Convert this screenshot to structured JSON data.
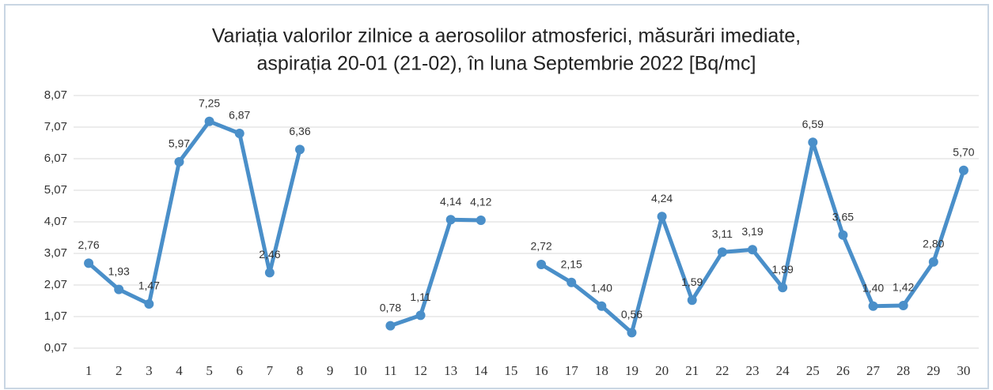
{
  "chart_data": {
    "type": "line",
    "title": [
      "Variația valorilor zilnice a aerosolilor atmosferici, măsurări imediate,",
      "aspirația 20-01 (21-02),  în luna Septembrie 2022 [Bq/mc]"
    ],
    "categories": [
      "1",
      "2",
      "3",
      "4",
      "5",
      "6",
      "7",
      "8",
      "9",
      "10",
      "11",
      "12",
      "13",
      "14",
      "15",
      "16",
      "17",
      "18",
      "19",
      "20",
      "21",
      "22",
      "23",
      "24",
      "25",
      "26",
      "27",
      "28",
      "29",
      "30"
    ],
    "values": [
      2.76,
      1.93,
      1.47,
      5.97,
      7.25,
      6.87,
      2.46,
      6.36,
      null,
      null,
      0.78,
      1.11,
      4.14,
      4.12,
      null,
      2.72,
      2.15,
      1.4,
      0.56,
      4.24,
      1.59,
      3.11,
      3.19,
      1.99,
      6.59,
      3.65,
      1.4,
      1.42,
      2.8,
      5.7
    ],
    "value_labels": [
      "2,76",
      "1,93",
      "1,47",
      "5,97",
      "7,25",
      "6,87",
      "2,46",
      "6,36",
      null,
      null,
      "0,78",
      "1,11",
      "4,14",
      "4,12",
      null,
      "2,72",
      "2,15",
      "1,40",
      "0,56",
      "4,24",
      "1,59",
      "3,11",
      "3,19",
      "1,99",
      "6,59",
      "3,65",
      "1,40",
      "1,42",
      "2,80",
      "5,70"
    ],
    "color": "#4a8fc9",
    "ylim": [
      0.07,
      8.07
    ],
    "yticks": [
      {
        "value": 0.07,
        "label": "0,07"
      },
      {
        "value": 1.07,
        "label": "1,07"
      },
      {
        "value": 2.07,
        "label": "2,07"
      },
      {
        "value": 3.07,
        "label": "3,07"
      },
      {
        "value": 4.07,
        "label": "4,07"
      },
      {
        "value": 5.07,
        "label": "5,07"
      },
      {
        "value": 6.07,
        "label": "6,07"
      },
      {
        "value": 7.07,
        "label": "7,07"
      },
      {
        "value": 8.07,
        "label": "8,07"
      }
    ],
    "grid": true
  }
}
